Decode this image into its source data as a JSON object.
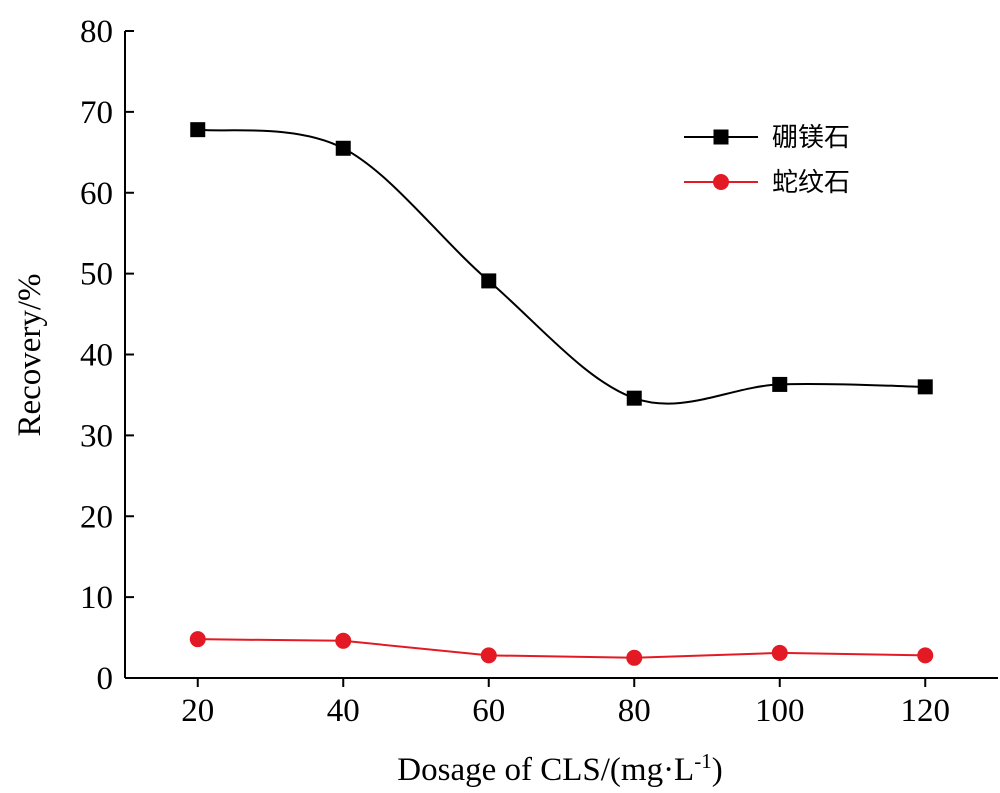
{
  "chart_data": {
    "type": "line",
    "xlabel": "Dosage of CLS/(mg·L",
    "xlabel_sup": "-1",
    "xlabel_end": ")",
    "ylabel": "Recovery/%",
    "x": [
      20,
      40,
      60,
      80,
      100,
      120
    ],
    "x_ticks": [
      "20",
      "40",
      "60",
      "80",
      "100",
      "120"
    ],
    "y_ticks": [
      "0",
      "10",
      "20",
      "30",
      "40",
      "50",
      "60",
      "70",
      "80"
    ],
    "xlim": [
      10,
      130
    ],
    "ylim": [
      0,
      80
    ],
    "grid": false,
    "legend_position": "top-right",
    "series": [
      {
        "name": "硼镁石",
        "color": "#000000",
        "marker": "square",
        "smooth": true,
        "values": [
          67.8,
          65.5,
          49.1,
          34.6,
          36.3,
          36.0
        ]
      },
      {
        "name": "蛇纹石",
        "color": "#e31a23",
        "marker": "circle",
        "smooth": false,
        "values": [
          4.8,
          4.6,
          2.8,
          2.5,
          3.1,
          2.8
        ]
      }
    ]
  }
}
